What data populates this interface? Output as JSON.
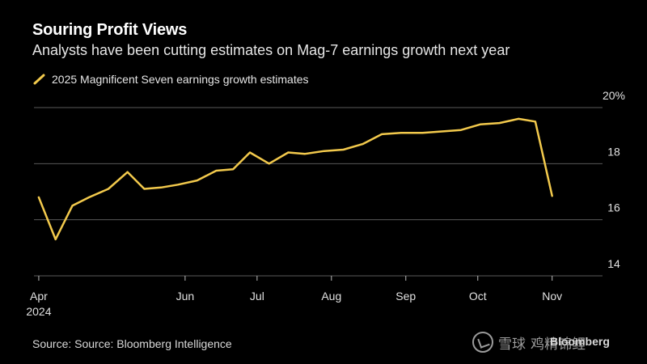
{
  "header": {
    "title": "Souring Profit Views",
    "subtitle": "Analysts have been cutting estimates on Mag-7 earnings growth next year"
  },
  "legend": {
    "label": "2025 Magnificent Seven earnings growth estimates"
  },
  "footer": {
    "source": "Source: Source: Bloomberg Intelligence",
    "watermark_text": "雪球",
    "watermark_name": "鸡精锦鲤",
    "bloomberg": "Bloomberg"
  },
  "colors": {
    "background": "#000000",
    "line": "#f2c94c",
    "grid": "#5a5a5a",
    "text": "#e6e6e6"
  },
  "chart_data": {
    "type": "line",
    "title": "Souring Profit Views",
    "subtitle": "Analysts have been cutting estimates on Mag-7 earnings growth next year",
    "xlabel": "",
    "ylabel": "",
    "ylim": [
      14,
      20
    ],
    "y_ticks": [
      {
        "value": 20,
        "label": "20%"
      },
      {
        "value": 18,
        "label": "18"
      },
      {
        "value": 16,
        "label": "16"
      },
      {
        "value": 14,
        "label": "14"
      }
    ],
    "x_ticks": [
      {
        "date": "2024-04-01",
        "label": "Apr",
        "sublabel": "2024"
      },
      {
        "date": "2024-06-01",
        "label": "Jun",
        "sublabel": ""
      },
      {
        "date": "2024-07-01",
        "label": "Jul",
        "sublabel": ""
      },
      {
        "date": "2024-08-01",
        "label": "Aug",
        "sublabel": ""
      },
      {
        "date": "2024-09-01",
        "label": "Sep",
        "sublabel": ""
      },
      {
        "date": "2024-10-01",
        "label": "Oct",
        "sublabel": ""
      },
      {
        "date": "2024-11-01",
        "label": "Nov",
        "sublabel": ""
      }
    ],
    "xlim": [
      "2024-03-30",
      "2024-11-22"
    ],
    "grid": true,
    "legend_position": "top-left",
    "series": [
      {
        "name": "2025 Magnificent Seven earnings growth estimates",
        "color": "#f2c94c",
        "points": [
          {
            "x": "2024-04-01",
            "y": 16.8
          },
          {
            "x": "2024-04-08",
            "y": 15.3
          },
          {
            "x": "2024-04-15",
            "y": 16.5
          },
          {
            "x": "2024-04-22",
            "y": 16.8
          },
          {
            "x": "2024-04-30",
            "y": 17.1
          },
          {
            "x": "2024-05-08",
            "y": 17.7
          },
          {
            "x": "2024-05-15",
            "y": 17.1
          },
          {
            "x": "2024-05-22",
            "y": 17.15
          },
          {
            "x": "2024-05-29",
            "y": 17.25
          },
          {
            "x": "2024-06-06",
            "y": 17.4
          },
          {
            "x": "2024-06-14",
            "y": 17.75
          },
          {
            "x": "2024-06-21",
            "y": 17.8
          },
          {
            "x": "2024-06-28",
            "y": 18.4
          },
          {
            "x": "2024-07-06",
            "y": 18.0
          },
          {
            "x": "2024-07-14",
            "y": 18.4
          },
          {
            "x": "2024-07-21",
            "y": 18.35
          },
          {
            "x": "2024-07-29",
            "y": 18.45
          },
          {
            "x": "2024-08-06",
            "y": 18.5
          },
          {
            "x": "2024-08-14",
            "y": 18.7
          },
          {
            "x": "2024-08-22",
            "y": 19.05
          },
          {
            "x": "2024-08-30",
            "y": 19.1
          },
          {
            "x": "2024-09-08",
            "y": 19.1
          },
          {
            "x": "2024-09-16",
            "y": 19.15
          },
          {
            "x": "2024-09-24",
            "y": 19.2
          },
          {
            "x": "2024-10-02",
            "y": 19.4
          },
          {
            "x": "2024-10-10",
            "y": 19.45
          },
          {
            "x": "2024-10-18",
            "y": 19.6
          },
          {
            "x": "2024-10-25",
            "y": 19.5
          },
          {
            "x": "2024-11-01",
            "y": 16.85
          }
        ]
      }
    ]
  }
}
